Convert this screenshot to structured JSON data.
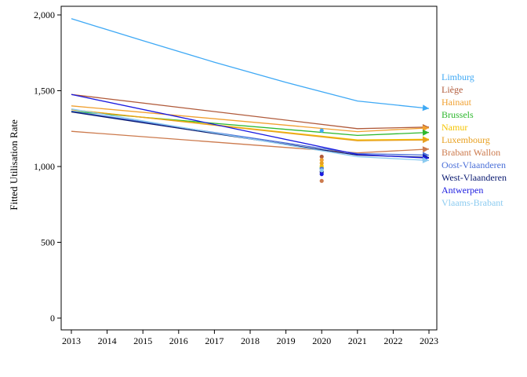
{
  "chart_data": {
    "type": "line",
    "ylabel": "Fitted Utilisation Rate",
    "xlabel": "",
    "title": "",
    "x": [
      2013,
      2014,
      2015,
      2016,
      2017,
      2018,
      2019,
      2020,
      2021,
      2022,
      2023
    ],
    "xlim": [
      2013,
      2023
    ],
    "ylim": [
      0,
      2000
    ],
    "yticks": [
      0,
      500,
      1000,
      1500,
      2000
    ],
    "ytick_labels": [
      "0",
      "500",
      "1,000",
      "1,500",
      "2,000"
    ],
    "grid": false,
    "legend_position": "right",
    "series": [
      {
        "name": "Limburg",
        "color": "#3fa9f5",
        "label_color": "#3fa9f5",
        "values": [
          1975,
          1830,
          1688,
          1555,
          1432,
          1383
        ],
        "x": [
          2013,
          2015,
          2017,
          2019,
          2021,
          2023
        ],
        "point_2020": 1237
      },
      {
        "name": "Liège",
        "color": "#b05a3a",
        "label_color": "#b05a3a",
        "values": [
          1475,
          1250,
          1260
        ],
        "x": [
          2013,
          2021,
          2023
        ],
        "point_2020": 1065
      },
      {
        "name": "Hainaut",
        "color": "#f0a030",
        "label_color": "#f0a030",
        "values": [
          1400,
          1230,
          1255
        ],
        "x": [
          2013,
          2021,
          2023
        ],
        "point_2020": 1043
      },
      {
        "name": "Brussels",
        "color": "#2eb82e",
        "label_color": "#2eb82e",
        "values": [
          1365,
          1205,
          1225
        ],
        "x": [
          2013,
          2021,
          2023
        ],
        "point_2020": 992
      },
      {
        "name": "Namur",
        "color": "#f5c400",
        "label_color": "#f5c400",
        "values": [
          1375,
          1175,
          1180
        ],
        "x": [
          2013,
          2021,
          2023
        ],
        "point_2020": 1003
      },
      {
        "name": "Luxembourg",
        "color": "#e8a020",
        "label_color": "#e8a020",
        "values": [
          1375,
          1170,
          1175
        ],
        "x": [
          2013,
          2021,
          2023
        ],
        "point_2020": 1022
      },
      {
        "name": "Brabant Wallon",
        "color": "#cc7a4d",
        "label_color": "#cc7a4d",
        "values": [
          1232,
          1090,
          1115
        ],
        "x": [
          2013,
          2021,
          2023
        ],
        "point_2020": 905
      },
      {
        "name": "Oost-Vlaanderen",
        "color": "#4a6fd8",
        "label_color": "#4a6fd8",
        "values": [
          1365,
          1085,
          1075
        ],
        "x": [
          2013,
          2021,
          2023
        ],
        "point_2020": 985
      },
      {
        "name": "West-Vlaanderen",
        "color": "#0a1a70",
        "label_color": "#0a1a70",
        "values": [
          1360,
          1075,
          1060
        ],
        "x": [
          2013,
          2021,
          2023
        ],
        "point_2020": 965
      },
      {
        "name": "Antwerpen",
        "color": "#1a1ae0",
        "label_color": "#1a1ae0",
        "values": [
          1475,
          1080,
          1055
        ],
        "x": [
          2013,
          2021,
          2023
        ],
        "point_2020": 950
      },
      {
        "name": "Vlaams-Brabant",
        "color": "#8ccbf0",
        "label_color": "#8ccbf0",
        "values": [
          1380,
          1065,
          1040
        ],
        "x": [
          2013,
          2021,
          2023
        ],
        "point_2020": 975
      }
    ]
  }
}
